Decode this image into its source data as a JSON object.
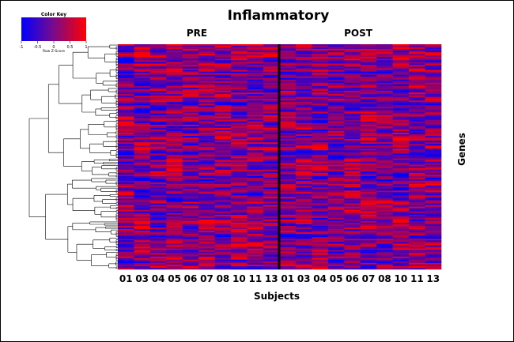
{
  "chart_data": {
    "type": "heatmap",
    "title": "Inflammatory",
    "xlabel": "Subjects",
    "ylabel": "Genes",
    "groups": [
      "PRE",
      "POST"
    ],
    "columns": [
      "01",
      "03",
      "04",
      "05",
      "06",
      "07",
      "08",
      "10",
      "11",
      "13",
      "01",
      "03",
      "04",
      "05",
      "06",
      "07",
      "08",
      "10",
      "11",
      "13"
    ],
    "color_key": {
      "title": "Color Key",
      "label": "Row Z-Score",
      "ticks": [
        "-1",
        "-0.5",
        "0",
        "0.5",
        "1"
      ],
      "range": [
        -1,
        1
      ],
      "low_color": "#0000ff",
      "high_color": "#ff0000"
    },
    "row_dendrogram": true,
    "grid": false
  }
}
